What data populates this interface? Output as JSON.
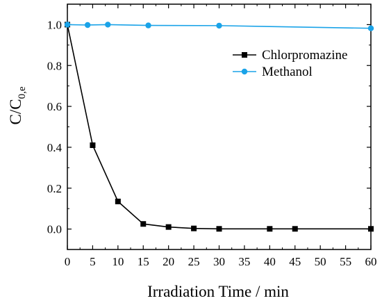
{
  "chart_data": {
    "type": "line",
    "xlabel": "Irradiation Time / min",
    "ylabel_main": "C/C",
    "ylabel_sub": "0,e",
    "xlim": [
      0,
      60
    ],
    "ylim": [
      -0.1,
      1.1
    ],
    "xticks": [
      0,
      5,
      10,
      15,
      20,
      25,
      30,
      35,
      40,
      45,
      50,
      55,
      60
    ],
    "xtick_labels": [
      "0",
      "5",
      "10",
      "15",
      "20",
      "25",
      "30",
      "35",
      "40",
      "45",
      "50",
      "55",
      "60"
    ],
    "yticks": [
      0.0,
      0.2,
      0.4,
      0.6,
      0.8,
      1.0
    ],
    "ytick_labels": [
      "0.0",
      "0.2",
      "0.4",
      "0.6",
      "0.8",
      "1.0"
    ],
    "grid": false,
    "legend_position": "top-right",
    "series": [
      {
        "name": "Chlorpromazine",
        "color": "#000000",
        "marker": "square",
        "x": [
          0,
          5,
          10,
          15,
          20,
          25,
          30,
          40,
          45,
          60
        ],
        "y": [
          1.0,
          0.41,
          0.135,
          0.025,
          0.01,
          0.003,
          0.001,
          0.001,
          0.001,
          0.001
        ]
      },
      {
        "name": "Methanol",
        "color": "#1aa3e8",
        "marker": "circle",
        "x": [
          0,
          4,
          8,
          16,
          30,
          60
        ],
        "y": [
          1.0,
          0.998,
          1.0,
          0.996,
          0.995,
          0.982
        ]
      }
    ]
  }
}
